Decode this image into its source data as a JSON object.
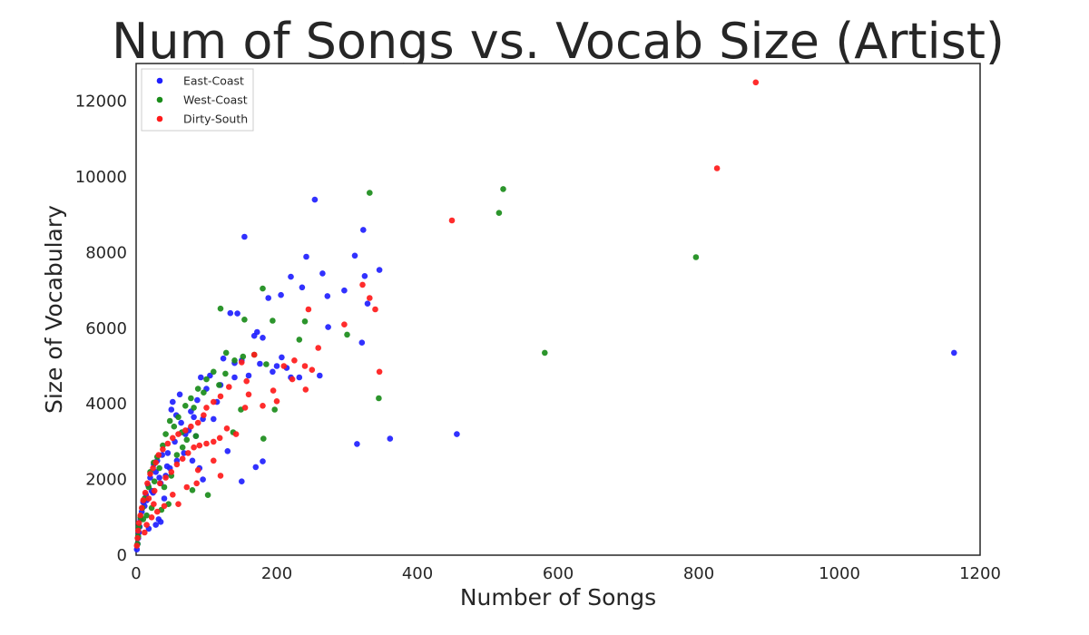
{
  "chart_data": {
    "type": "scatter",
    "title": "Num of Songs vs. Vocab Size (Artist)",
    "xlabel": "Number of Songs",
    "ylabel": "Size of Vocabulary",
    "xlim": [
      0,
      1200
    ],
    "ylim": [
      0,
      13000
    ],
    "xticks": [
      0,
      200,
      400,
      600,
      800,
      1000,
      1200
    ],
    "yticks": [
      0,
      2000,
      4000,
      6000,
      8000,
      10000,
      12000
    ],
    "grid": false,
    "legend_position": "top-left",
    "series": [
      {
        "name": "East-Coast",
        "color": "#1f1fff",
        "points": [
          [
            1163,
            5350
          ],
          [
            456,
            3200
          ],
          [
            361,
            3080
          ],
          [
            314,
            2940
          ],
          [
            254,
            9400
          ],
          [
            154,
            8420
          ],
          [
            323,
            8600
          ],
          [
            311,
            7920
          ],
          [
            242,
            7890
          ],
          [
            346,
            7540
          ],
          [
            325,
            7380
          ],
          [
            265,
            7450
          ],
          [
            220,
            7360
          ],
          [
            296,
            7000
          ],
          [
            329,
            6650
          ],
          [
            206,
            6880
          ],
          [
            188,
            6800
          ],
          [
            272,
            6850
          ],
          [
            236,
            7080
          ],
          [
            134,
            6400
          ],
          [
            144,
            6390
          ],
          [
            172,
            5900
          ],
          [
            168,
            5800
          ],
          [
            180,
            5750
          ],
          [
            321,
            5620
          ],
          [
            273,
            6030
          ],
          [
            150,
            5150
          ],
          [
            124,
            5200
          ],
          [
            140,
            5080
          ],
          [
            176,
            5060
          ],
          [
            200,
            5000
          ],
          [
            207,
            5230
          ],
          [
            220,
            4700
          ],
          [
            232,
            4700
          ],
          [
            261,
            4750
          ],
          [
            194,
            4850
          ],
          [
            214,
            4950
          ],
          [
            160,
            4750
          ],
          [
            140,
            4700
          ],
          [
            120,
            4500
          ],
          [
            105,
            4750
          ],
          [
            92,
            4700
          ],
          [
            100,
            4400
          ],
          [
            87,
            4100
          ],
          [
            78,
            3800
          ],
          [
            62,
            4250
          ],
          [
            52,
            4050
          ],
          [
            50,
            3850
          ],
          [
            57,
            3700
          ],
          [
            64,
            3500
          ],
          [
            75,
            3300
          ],
          [
            85,
            3150
          ],
          [
            70,
            3200
          ],
          [
            55,
            3000
          ],
          [
            45,
            2700
          ],
          [
            37,
            2650
          ],
          [
            30,
            2500
          ],
          [
            25,
            2400
          ],
          [
            28,
            2200
          ],
          [
            20,
            2050
          ],
          [
            17,
            1850
          ],
          [
            14,
            1600
          ],
          [
            10,
            1400
          ],
          [
            8,
            1150
          ],
          [
            6,
            950
          ],
          [
            5,
            750
          ],
          [
            4,
            600
          ],
          [
            3,
            450
          ],
          [
            2,
            300
          ],
          [
            1,
            150
          ],
          [
            12,
            1300
          ],
          [
            22,
            1700
          ],
          [
            35,
            1900
          ],
          [
            42,
            2100
          ],
          [
            48,
            2300
          ],
          [
            58,
            2500
          ],
          [
            68,
            2700
          ],
          [
            80,
            2500
          ],
          [
            90,
            2300
          ],
          [
            95,
            2000
          ],
          [
            180,
            2480
          ],
          [
            170,
            2330
          ],
          [
            150,
            1950
          ],
          [
            130,
            2750
          ],
          [
            110,
            3600
          ],
          [
            115,
            4050
          ],
          [
            95,
            3600
          ],
          [
            82,
            3650
          ],
          [
            32,
            950
          ],
          [
            35,
            880
          ],
          [
            28,
            800
          ],
          [
            18,
            700
          ],
          [
            40,
            1500
          ],
          [
            15,
            1450
          ],
          [
            24,
            1650
          ],
          [
            33,
            2050
          ],
          [
            44,
            2350
          ]
        ]
      },
      {
        "name": "West-Coast",
        "color": "#1a8c1a",
        "points": [
          [
            522,
            9680
          ],
          [
            516,
            9050
          ],
          [
            332,
            9580
          ],
          [
            796,
            7880
          ],
          [
            581,
            5350
          ],
          [
            345,
            4150
          ],
          [
            180,
            7050
          ],
          [
            120,
            6520
          ],
          [
            154,
            6230
          ],
          [
            194,
            6200
          ],
          [
            240,
            6180
          ],
          [
            232,
            5700
          ],
          [
            300,
            5830
          ],
          [
            128,
            5350
          ],
          [
            168,
            5300
          ],
          [
            152,
            5250
          ],
          [
            140,
            5150
          ],
          [
            185,
            5050
          ],
          [
            110,
            4850
          ],
          [
            127,
            4800
          ],
          [
            100,
            4650
          ],
          [
            118,
            4500
          ],
          [
            88,
            4400
          ],
          [
            96,
            4300
          ],
          [
            78,
            4150
          ],
          [
            70,
            3950
          ],
          [
            82,
            3900
          ],
          [
            60,
            3650
          ],
          [
            48,
            3550
          ],
          [
            54,
            3400
          ],
          [
            42,
            3200
          ],
          [
            65,
            3250
          ],
          [
            72,
            3050
          ],
          [
            85,
            3150
          ],
          [
            138,
            3250
          ],
          [
            149,
            3850
          ],
          [
            197,
            3850
          ],
          [
            181,
            3080
          ],
          [
            102,
            1590
          ],
          [
            80,
            1720
          ],
          [
            38,
            2900
          ],
          [
            30,
            2600
          ],
          [
            25,
            2450
          ],
          [
            33,
            2300
          ],
          [
            20,
            2200
          ],
          [
            26,
            1950
          ],
          [
            18,
            1800
          ],
          [
            12,
            1500
          ],
          [
            9,
            1250
          ],
          [
            6,
            1000
          ],
          [
            4,
            750
          ],
          [
            3,
            500
          ],
          [
            2,
            300
          ],
          [
            15,
            1050
          ],
          [
            22,
            1250
          ],
          [
            40,
            1800
          ],
          [
            50,
            2100
          ],
          [
            58,
            2650
          ],
          [
            66,
            2850
          ],
          [
            46,
            1350
          ],
          [
            36,
            1200
          ],
          [
            10,
            950
          ]
        ]
      },
      {
        "name": "Dirty-South",
        "color": "#ff1a1a",
        "points": [
          [
            881,
            12500
          ],
          [
            826,
            10230
          ],
          [
            449,
            8850
          ],
          [
            322,
            7150
          ],
          [
            332,
            6800
          ],
          [
            340,
            6500
          ],
          [
            296,
            6100
          ],
          [
            245,
            6500
          ],
          [
            346,
            4850
          ],
          [
            259,
            5480
          ],
          [
            240,
            5000
          ],
          [
            250,
            4900
          ],
          [
            225,
            5150
          ],
          [
            210,
            5000
          ],
          [
            241,
            4380
          ],
          [
            200,
            4070
          ],
          [
            168,
            5300
          ],
          [
            150,
            5100
          ],
          [
            157,
            4600
          ],
          [
            132,
            4450
          ],
          [
            120,
            4200
          ],
          [
            110,
            4050
          ],
          [
            100,
            3900
          ],
          [
            96,
            3700
          ],
          [
            88,
            3500
          ],
          [
            78,
            3400
          ],
          [
            70,
            3300
          ],
          [
            60,
            3200
          ],
          [
            52,
            3100
          ],
          [
            45,
            2950
          ],
          [
            38,
            2800
          ],
          [
            32,
            2650
          ],
          [
            28,
            2450
          ],
          [
            24,
            2300
          ],
          [
            20,
            2150
          ],
          [
            16,
            1900
          ],
          [
            13,
            1650
          ],
          [
            10,
            1450
          ],
          [
            8,
            1250
          ],
          [
            6,
            1050
          ],
          [
            4,
            850
          ],
          [
            3,
            650
          ],
          [
            2,
            450
          ],
          [
            1,
            250
          ],
          [
            18,
            1500
          ],
          [
            26,
            1700
          ],
          [
            34,
            1900
          ],
          [
            42,
            2050
          ],
          [
            50,
            2200
          ],
          [
            58,
            2400
          ],
          [
            66,
            2550
          ],
          [
            74,
            2700
          ],
          [
            82,
            2850
          ],
          [
            90,
            2900
          ],
          [
            100,
            2950
          ],
          [
            110,
            3000
          ],
          [
            119,
            3100
          ],
          [
            129,
            3350
          ],
          [
            142,
            3200
          ],
          [
            155,
            3900
          ],
          [
            160,
            4250
          ],
          [
            180,
            3950
          ],
          [
            195,
            4350
          ],
          [
            222,
            4650
          ],
          [
            110,
            2500
          ],
          [
            120,
            2100
          ],
          [
            88,
            2250
          ],
          [
            86,
            1900
          ],
          [
            72,
            1800
          ],
          [
            52,
            1600
          ],
          [
            60,
            1350
          ],
          [
            40,
            1300
          ],
          [
            30,
            1150
          ],
          [
            22,
            1000
          ],
          [
            15,
            800
          ],
          [
            12,
            600
          ],
          [
            25,
            1350
          ]
        ]
      }
    ]
  }
}
